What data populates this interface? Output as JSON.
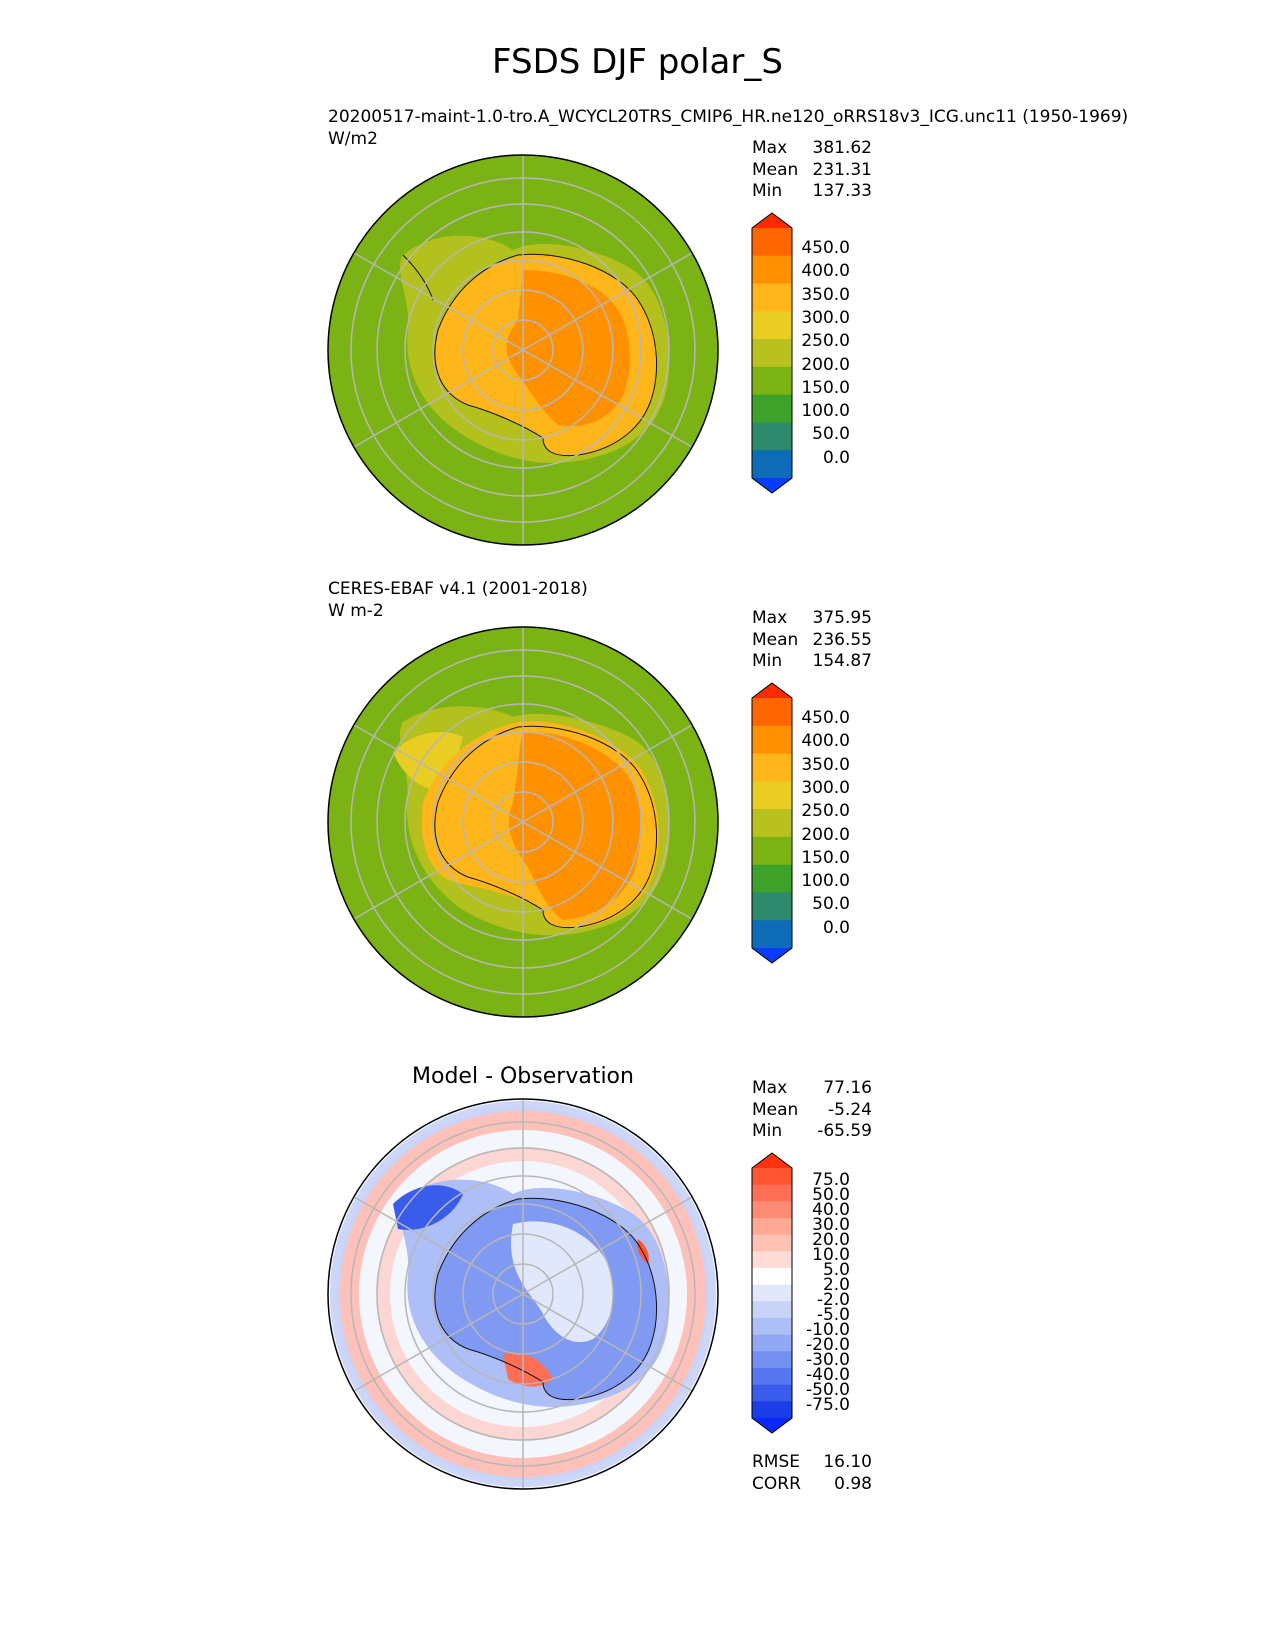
{
  "title": "FSDS DJF polar_S",
  "panels": [
    {
      "id": "model",
      "subtitle": "20200517-maint-1.0-tro.A_WCYCL20TRS_CMIP6_HR.ne120_oRRS18v3_ICG.unc11 (1950-1969)",
      "units": "W/m2",
      "stats": [
        {
          "key": "Max",
          "value": "381.62"
        },
        {
          "key": "Mean",
          "value": "231.31"
        },
        {
          "key": "Min",
          "value": "137.33"
        }
      ]
    },
    {
      "id": "obs",
      "subtitle": "CERES-EBAF v4.1 (2001-2018)",
      "units": "W m-2",
      "stats": [
        {
          "key": "Max",
          "value": "375.95"
        },
        {
          "key": "Mean",
          "value": "236.55"
        },
        {
          "key": "Min",
          "value": "154.87"
        }
      ]
    },
    {
      "id": "diff",
      "title": "Model - Observation",
      "stats": [
        {
          "key": "Max",
          "value": "77.16"
        },
        {
          "key": "Mean",
          "value": "-5.24"
        },
        {
          "key": "Min",
          "value": "-65.59"
        }
      ],
      "metrics": [
        {
          "key": "RMSE",
          "value": "16.10"
        },
        {
          "key": "CORR",
          "value": "0.98"
        }
      ]
    }
  ],
  "colorbars": {
    "absolute": {
      "labels": [
        "450.0",
        "400.0",
        "350.0",
        "300.0",
        "250.0",
        "200.0",
        "150.0",
        "100.0",
        "50.0",
        "0.0"
      ],
      "colors": [
        "#ff2a00",
        "#ff6600",
        "#ff9100",
        "#ffb61a",
        "#e8cd23",
        "#b9c11e",
        "#7bb315",
        "#3ea12a",
        "#2e8a6d",
        "#0d6bb8",
        "#0a3cff"
      ]
    },
    "difference": {
      "labels": [
        "75.0",
        "50.0",
        "40.0",
        "30.0",
        "20.0",
        "10.0",
        "5.0",
        "2.0",
        "-2.0",
        "-5.0",
        "-10.0",
        "-20.0",
        "-30.0",
        "-40.0",
        "-50.0",
        "-75.0"
      ],
      "colors": [
        "#ff3311",
        "#ff5533",
        "#ff6f55",
        "#ff8b75",
        "#ffa894",
        "#ffc2b5",
        "#ffdcd5",
        "#ffffff",
        "#e2e8fb",
        "#c8d3f8",
        "#aebef6",
        "#92a8f4",
        "#7490f1",
        "#5576ee",
        "#3a5ceb",
        "#1b3de8",
        "#0a28ff"
      ]
    }
  },
  "chart_data": {
    "type": "heatmap",
    "projection": "south polar stereographic",
    "variable": "FSDS",
    "season": "DJF",
    "maps": [
      {
        "name": "20200517-maint-1.0-tro.A_WCYCL20TRS_CMIP6_HR.ne120_oRRS18v3_ICG.unc11 (1950-1969)",
        "units": "W/m2",
        "max": 381.62,
        "mean": 231.31,
        "min": 137.33
      },
      {
        "name": "CERES-EBAF v4.1 (2001-2018)",
        "units": "W m-2",
        "max": 375.95,
        "mean": 236.55,
        "min": 154.87
      },
      {
        "name": "Model - Observation",
        "max": 77.16,
        "mean": -5.24,
        "min": -65.59,
        "rmse": 16.1,
        "corr": 0.98
      }
    ],
    "levels_absolute": [
      0,
      50,
      100,
      150,
      200,
      250,
      300,
      350,
      400,
      450
    ],
    "levels_difference": [
      -75,
      -50,
      -40,
      -30,
      -20,
      -10,
      -5,
      -2,
      2,
      5,
      10,
      20,
      30,
      40,
      50,
      75
    ],
    "grid": true
  }
}
